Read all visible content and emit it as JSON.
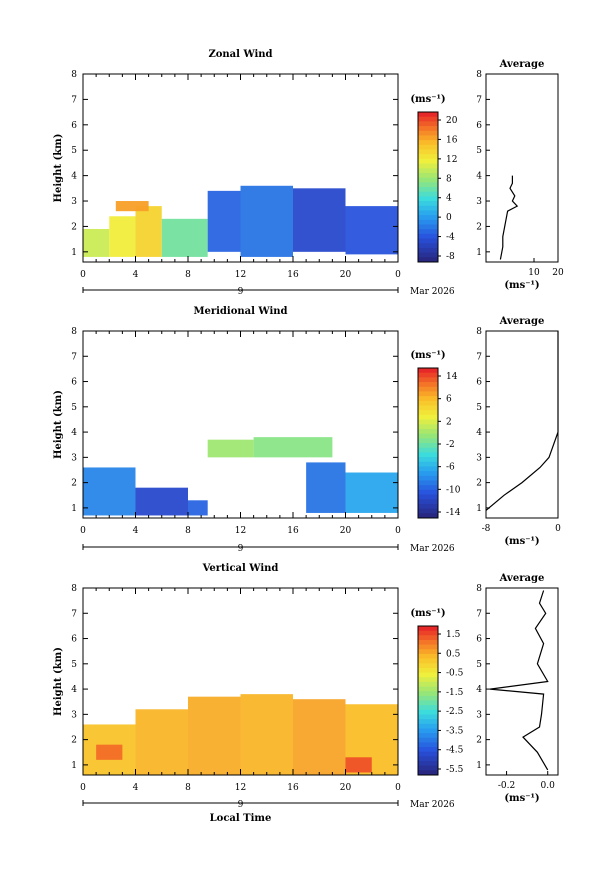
{
  "page": {
    "xlabel": "Local Time",
    "date_label": "Mar 2026",
    "day_label": "9",
    "avg_title": "Average",
    "unit_label": "(ms⁻¹)"
  },
  "chart_data": [
    {
      "type": "heatmap",
      "title": "Zonal Wind",
      "ylabel": "Height (km)",
      "xlabel": "",
      "xlim": [
        0,
        24
      ],
      "ylim": [
        0.6,
        8
      ],
      "xticks": [
        "0",
        "4",
        "8",
        "12",
        "16",
        "20",
        "0"
      ],
      "yticks": [
        "1",
        "2",
        "3",
        "4",
        "5",
        "6",
        "7",
        "8"
      ],
      "colorbar": {
        "unit": "(ms⁻¹)",
        "ticks": [
          "20",
          "16",
          "12",
          "8",
          "4",
          "0",
          "-4",
          "-8"
        ],
        "range": [
          -10,
          22
        ],
        "zero_line": 0
      },
      "regions": [
        {
          "x": [
            0,
            2
          ],
          "y": [
            0.8,
            1.9
          ],
          "value": 10
        },
        {
          "x": [
            2,
            4
          ],
          "y": [
            0.8,
            2.4
          ],
          "value": 12
        },
        {
          "x": [
            4,
            6
          ],
          "y": [
            0.8,
            2.8
          ],
          "value": 14
        },
        {
          "x": [
            6,
            9.5
          ],
          "y": [
            0.8,
            2.3
          ],
          "value": 6
        },
        {
          "x": [
            2.5,
            5
          ],
          "y": [
            2.6,
            3.0
          ],
          "value": 17
        },
        {
          "x": [
            9.5,
            12
          ],
          "y": [
            1.0,
            3.4
          ],
          "value": -4
        },
        {
          "x": [
            12,
            16
          ],
          "y": [
            0.8,
            3.6
          ],
          "value": -3
        },
        {
          "x": [
            16,
            20
          ],
          "y": [
            1.0,
            3.5
          ],
          "value": -6
        },
        {
          "x": [
            20,
            24
          ],
          "y": [
            0.9,
            2.8
          ],
          "value": -5
        }
      ],
      "average": {
        "xlim": [
          -10,
          20
        ],
        "xticks": [
          "10",
          "20"
        ],
        "profile_x": [
          -4,
          -3,
          -3,
          -2,
          -1,
          3,
          1,
          2,
          0,
          1,
          1
        ],
        "profile_y": [
          0.7,
          1.2,
          1.6,
          2.1,
          2.6,
          2.8,
          3.0,
          3.2,
          3.5,
          3.7,
          4.0
        ]
      }
    },
    {
      "type": "heatmap",
      "title": "Meridional Wind",
      "ylabel": "Height (km)",
      "xlabel": "",
      "xlim": [
        0,
        24
      ],
      "ylim": [
        0.6,
        8
      ],
      "xticks": [
        "0",
        "4",
        "8",
        "12",
        "16",
        "20",
        "0"
      ],
      "yticks": [
        "1",
        "2",
        "3",
        "4",
        "5",
        "6",
        "7",
        "8"
      ],
      "colorbar": {
        "unit": "(ms⁻¹)",
        "ticks": [
          "14",
          "6",
          "2",
          "-2",
          "-6",
          "-10",
          "-14"
        ],
        "range": [
          -16,
          16
        ],
        "zero_line": 0
      },
      "regions": [
        {
          "x": [
            0,
            4
          ],
          "y": [
            0.7,
            2.6
          ],
          "value": -8
        },
        {
          "x": [
            4,
            8
          ],
          "y": [
            0.7,
            1.8
          ],
          "value": -12
        },
        {
          "x": [
            8,
            9.5
          ],
          "y": [
            0.7,
            1.3
          ],
          "value": -10
        },
        {
          "x": [
            9.5,
            13
          ],
          "y": [
            3.0,
            3.7
          ],
          "value": 2
        },
        {
          "x": [
            13,
            19
          ],
          "y": [
            3.0,
            3.8
          ],
          "value": 1
        },
        {
          "x": [
            17,
            20
          ],
          "y": [
            0.8,
            2.8
          ],
          "value": -9
        },
        {
          "x": [
            20,
            24
          ],
          "y": [
            0.8,
            2.4
          ],
          "value": -6
        }
      ],
      "average": {
        "xlim": [
          -8,
          0
        ],
        "xticks": [
          "-8",
          "0"
        ],
        "profile_x": [
          -8,
          -6,
          -4,
          -2,
          -1,
          0,
          0
        ],
        "profile_y": [
          0.9,
          1.5,
          2.0,
          2.6,
          3.0,
          4.0,
          8.0
        ]
      }
    },
    {
      "type": "heatmap",
      "title": "Vertical Wind",
      "ylabel": "Height (km)",
      "xlabel": "Local Time",
      "xlim": [
        0,
        24
      ],
      "ylim": [
        0.6,
        8
      ],
      "xticks": [
        "0",
        "4",
        "8",
        "12",
        "16",
        "20",
        "0"
      ],
      "yticks": [
        "1",
        "2",
        "3",
        "4",
        "5",
        "6",
        "7",
        "8"
      ],
      "colorbar": {
        "unit": "(ms⁻¹)",
        "ticks": [
          "1.5",
          "0.5",
          "-0.5",
          "-1.5",
          "-2.5",
          "-3.5",
          "-4.5",
          "-5.5"
        ],
        "range": [
          -6,
          2
        ]
      },
      "regions": [
        {
          "x": [
            0,
            4
          ],
          "y": [
            0.6,
            2.6
          ],
          "value": 0.3
        },
        {
          "x": [
            4,
            8
          ],
          "y": [
            0.6,
            3.2
          ],
          "value": 0.5
        },
        {
          "x": [
            8,
            12
          ],
          "y": [
            0.6,
            3.7
          ],
          "value": 0.6
        },
        {
          "x": [
            12,
            16
          ],
          "y": [
            0.6,
            3.8
          ],
          "value": 0.5
        },
        {
          "x": [
            16,
            20
          ],
          "y": [
            0.6,
            3.6
          ],
          "value": 0.7
        },
        {
          "x": [
            20,
            24
          ],
          "y": [
            0.6,
            3.4
          ],
          "value": 0.4
        },
        {
          "x": [
            1,
            3
          ],
          "y": [
            1.2,
            1.8
          ],
          "value": 1.3
        },
        {
          "x": [
            20,
            22
          ],
          "y": [
            0.7,
            1.3
          ],
          "value": 1.6
        }
      ],
      "average": {
        "xlim": [
          -0.3,
          0.05
        ],
        "xticks": [
          "-0.2",
          "0.0"
        ],
        "profile_x": [
          0.0,
          -0.05,
          -0.12,
          -0.04,
          -0.03,
          -0.02,
          -0.28,
          0.0,
          -0.05,
          -0.02,
          -0.06,
          -0.01,
          -0.04,
          -0.02
        ],
        "profile_y": [
          0.8,
          1.5,
          2.1,
          2.5,
          3.0,
          3.8,
          4.0,
          4.3,
          5.0,
          5.8,
          6.4,
          7.0,
          7.4,
          7.9
        ]
      }
    }
  ]
}
